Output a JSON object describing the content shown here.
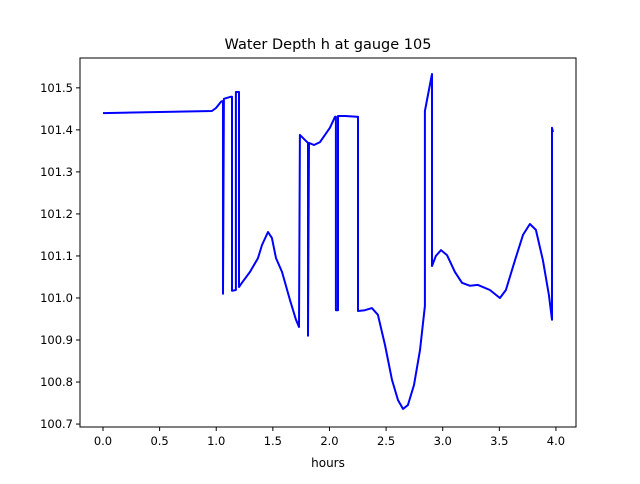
{
  "chart_data": {
    "type": "line",
    "title": "Water Depth h at gauge 105",
    "xlabel": "hours",
    "ylabel": "",
    "xlim": [
      -0.203,
      4.177
    ],
    "ylim": [
      100.693,
      101.571
    ],
    "xticks": [
      0,
      0.5,
      1,
      1.5,
      2,
      2.5,
      3,
      3.5,
      4
    ],
    "xtick_labels": [
      "0.0",
      "0.5",
      "1.0",
      "1.5",
      "2.0",
      "2.5",
      "3.0",
      "3.5",
      "4.0"
    ],
    "yticks": [
      100.7,
      100.8,
      100.9,
      101.0,
      101.1,
      101.2,
      101.3,
      101.4,
      101.5
    ],
    "ytick_labels": [
      "100.7",
      "100.8",
      "100.9",
      "101.0",
      "101.1",
      "101.2",
      "101.3",
      "101.4",
      "101.5"
    ],
    "grid": false,
    "series": [
      {
        "name": "h",
        "color": "#0000ff",
        "x": [
          0,
          0.962,
          0.998,
          1.042,
          1.06,
          1.06,
          1.068,
          1.13,
          1.139,
          1.139,
          1.174,
          1.174,
          1.201,
          1.201,
          1.227,
          1.298,
          1.369,
          1.404,
          1.457,
          1.492,
          1.528,
          1.581,
          1.651,
          1.704,
          1.731,
          1.739,
          1.81,
          1.81,
          1.819,
          1.863,
          1.916,
          2.004,
          2.049,
          2.057,
          2.057,
          2.075,
          2.075,
          2.137,
          2.243,
          2.252,
          2.252,
          2.313,
          2.375,
          2.428,
          2.49,
          2.552,
          2.605,
          2.649,
          2.693,
          2.746,
          2.799,
          2.843,
          2.843,
          2.905,
          2.905,
          2.94,
          2.985,
          3.038,
          3.108,
          3.17,
          3.241,
          3.311,
          3.417,
          3.505,
          3.558,
          3.638,
          3.709,
          3.77,
          3.823,
          3.885,
          3.938,
          3.965,
          3.965,
          3.974
        ],
        "y": [
          101.44,
          101.445,
          101.452,
          101.467,
          101.469,
          101.01,
          101.474,
          101.479,
          101.479,
          101.017,
          101.019,
          101.49,
          101.49,
          101.026,
          101.036,
          101.062,
          101.095,
          101.126,
          101.157,
          101.143,
          101.095,
          101.062,
          100.995,
          100.948,
          100.931,
          101.388,
          101.369,
          100.91,
          101.369,
          101.364,
          101.371,
          101.405,
          101.431,
          101.431,
          100.971,
          100.971,
          101.433,
          101.433,
          101.431,
          101.431,
          100.969,
          100.971,
          100.976,
          100.96,
          100.888,
          100.805,
          100.757,
          100.736,
          100.745,
          100.793,
          100.876,
          100.981,
          101.445,
          101.533,
          101.076,
          101.1,
          101.114,
          101.102,
          101.062,
          101.036,
          101.029,
          101.031,
          101.019,
          101.0,
          101.019,
          101.09,
          101.15,
          101.176,
          101.162,
          101.09,
          101.007,
          100.948,
          101.405,
          101.395
        ]
      }
    ]
  }
}
